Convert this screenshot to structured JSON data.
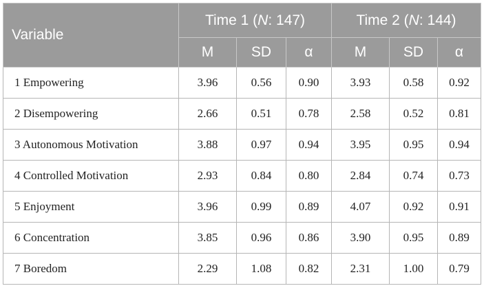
{
  "header": {
    "variable_label": "Variable",
    "time1": {
      "prefix": "Time 1 (",
      "n_label": "N",
      "suffix": ": 147)"
    },
    "time2": {
      "prefix": "Time 2 (",
      "n_label": "N",
      "suffix": ": 144)"
    },
    "subcolumns": [
      "M",
      "SD",
      "α",
      "M",
      "SD",
      "α"
    ]
  },
  "rows": [
    {
      "variable": "1 Empowering",
      "t1_m": "3.96",
      "t1_sd": "0.56",
      "t1_a": "0.90",
      "t2_m": "3.93",
      "t2_sd": "0.58",
      "t2_a": "0.92"
    },
    {
      "variable": "2 Disempowering",
      "t1_m": "2.66",
      "t1_sd": "0.51",
      "t1_a": "0.78",
      "t2_m": "2.58",
      "t2_sd": "0.52",
      "t2_a": "0.81"
    },
    {
      "variable": "3 Autonomous Motivation",
      "t1_m": "3.88",
      "t1_sd": "0.97",
      "t1_a": "0.94",
      "t2_m": "3.95",
      "t2_sd": "0.95",
      "t2_a": "0.94"
    },
    {
      "variable": "4 Controlled Motivation",
      "t1_m": "2.93",
      "t1_sd": "0.84",
      "t1_a": "0.80",
      "t2_m": "2.84",
      "t2_sd": "0.74",
      "t2_a": "0.73"
    },
    {
      "variable": "5 Enjoyment",
      "t1_m": "3.96",
      "t1_sd": "0.99",
      "t1_a": "0.89",
      "t2_m": "4.07",
      "t2_sd": "0.92",
      "t2_a": "0.91"
    },
    {
      "variable": "6 Concentration",
      "t1_m": "3.85",
      "t1_sd": "0.96",
      "t1_a": "0.86",
      "t2_m": "3.90",
      "t2_sd": "0.95",
      "t2_a": "0.89"
    },
    {
      "variable": "7 Boredom",
      "t1_m": "2.29",
      "t1_sd": "1.08",
      "t1_a": "0.82",
      "t2_m": "2.31",
      "t2_sd": "1.00",
      "t2_a": "0.79"
    }
  ],
  "colors": {
    "header_bg": "#9b9b9b",
    "header_text": "#ffffff",
    "border": "#b5b5b5"
  }
}
